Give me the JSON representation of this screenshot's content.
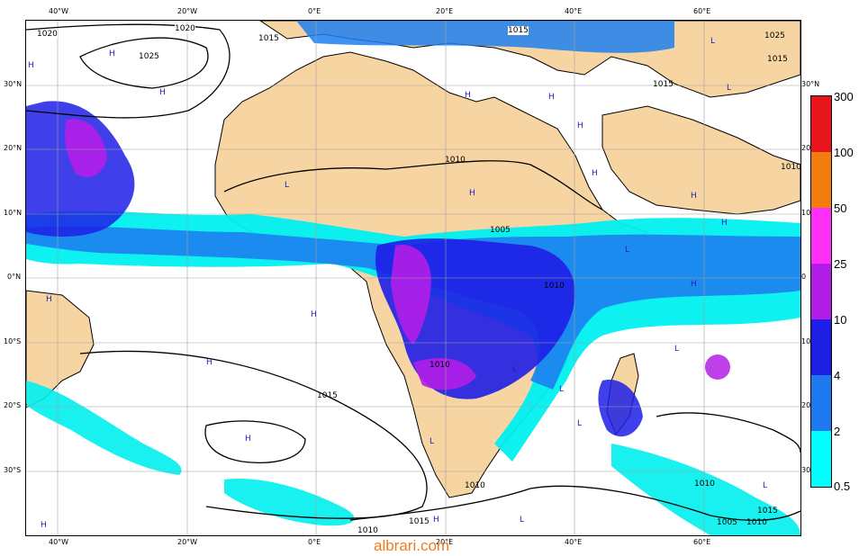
{
  "map": {
    "top_lon_labels": [
      "40°W",
      "20°W",
      "0°E",
      "20°E",
      "40°E",
      "60°E"
    ],
    "bottom_lon_labels": [
      "40°W",
      "20°W",
      "0°E",
      "20°E",
      "40°E",
      "60°E"
    ],
    "left_lat_labels": [
      "30°N",
      "20°N",
      "10°N",
      "0°N",
      "10°S",
      "20°S",
      "30°S"
    ],
    "right_lat_labels": [
      "30°N",
      "20",
      "10",
      "0",
      "10",
      "20",
      "30"
    ],
    "pressure_labels": [
      "1020",
      "1020",
      "1025",
      "1015",
      "1015",
      "1025",
      "1015",
      "1015",
      "1010",
      "1010",
      "1005",
      "1010",
      "1010",
      "1015",
      "1010",
      "1010",
      "1015",
      "1005",
      "1010",
      "1015",
      "1010"
    ],
    "system_markers": [
      "H",
      "H",
      "H",
      "H",
      "L",
      "H",
      "H",
      "L",
      "H",
      "H",
      "L",
      "L",
      "H",
      "H",
      "H",
      "H",
      "H",
      "H",
      "L",
      "L",
      "L",
      "L",
      "H",
      "L",
      "H",
      "H",
      "L",
      "L"
    ]
  },
  "legend": {
    "labels": [
      "300",
      "100",
      "50",
      "25",
      "10",
      "4",
      "2",
      "0.5"
    ],
    "colors": [
      "#e8141b",
      "#f27c0e",
      "#ff2ff7",
      "#b21ee8",
      "#1e1ee6",
      "#1e78f0",
      "#28c8f0",
      "#00ffff"
    ]
  },
  "colors": {
    "land": "#f7d5a3",
    "ocean": "#ffffff",
    "precip_light": "#00f0f0",
    "precip_mid": "#1e7ff0",
    "precip_heavy": "#1e1ee6",
    "precip_very_heavy": "#b21ee8",
    "precip_extreme": "#ff2ff7",
    "isobar": "#000000",
    "watermark": "#f07a1e"
  },
  "watermark": "albrari.com"
}
